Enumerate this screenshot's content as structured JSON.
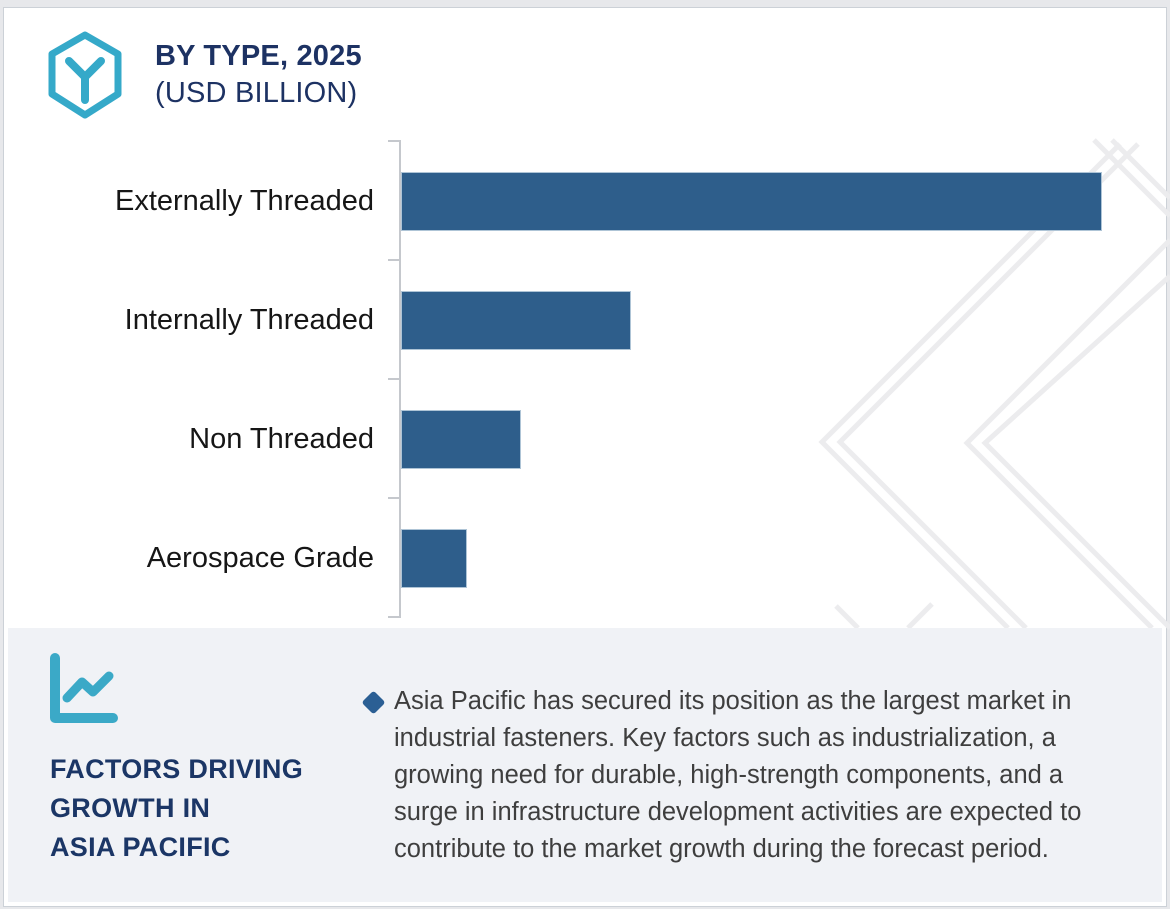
{
  "header": {
    "icon_name": "hexagon-y-brand-icon",
    "title": "BY TYPE, 2025",
    "subtitle": "(USD BILLION)"
  },
  "chart_data": {
    "type": "bar",
    "orientation": "horizontal",
    "title": "BY TYPE, 2025",
    "unit": "USD Billion",
    "categories": [
      "Externally Threaded",
      "Internally Threaded",
      "Non Threaded",
      "Aerospace Grade"
    ],
    "values": [
      100,
      32.8,
      17.1,
      9.4
    ],
    "values_note": "Relative bar lengths as % of the largest bar; no numeric value-axis labels are shown in the image",
    "xlim": [
      0,
      100
    ],
    "xlabel": "",
    "ylabel": "",
    "gridlines": false,
    "legend": false,
    "value_labels_shown": false,
    "bar_color": "#2e5e8b"
  },
  "panel": {
    "icon_name": "line-chart-icon",
    "heading_lines": [
      "FACTORS DRIVING",
      "GROWTH IN",
      "ASIA PACIFIC"
    ],
    "bullet_marker": "diamond",
    "paragraph_lines": [
      "Asia Pacific has secured its position as the largest market in",
      "industrial fasteners. Key factors such as industrialization, a",
      "growing need for durable, high-strength components, and a",
      "surge in infrastructure development activities are expected to",
      "contribute to the market growth during the forecast period."
    ],
    "paragraph_text": "Asia Pacific has secured its position as the largest market in industrial fasteners. Key factors such as industrialization, a growing need for durable, high-strength components, and a surge in infrastructure development activities are expected to contribute to the market growth during the forecast period."
  },
  "colors": {
    "bar": "#2e5e8b",
    "navy_text": "#1d3263",
    "teal_icon": "#38a8c8",
    "panel_bg": "#f0f2f6",
    "watermark": "#ececee",
    "axis": "#c5c8cd",
    "body_text": "#3e3e3e",
    "bullet": "#2b5f94"
  }
}
